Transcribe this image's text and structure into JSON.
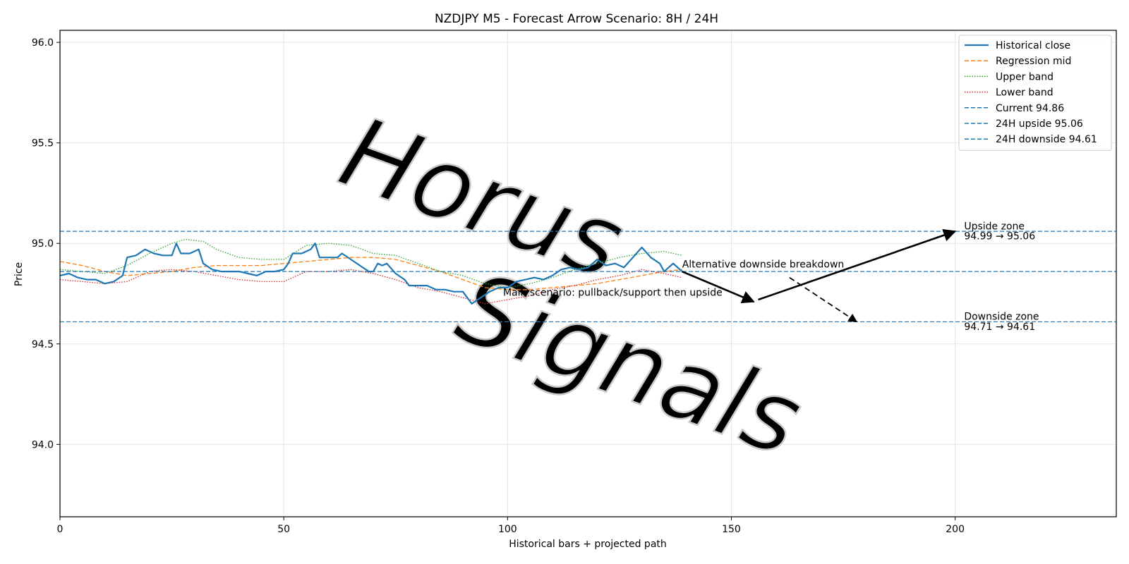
{
  "chart_data": {
    "type": "line",
    "title": "NZDJPY M5 - Forecast Arrow Scenario: 8H / 24H",
    "xlabel": "Historical bars + projected path",
    "ylabel": "Price",
    "xlim": [
      0,
      236
    ],
    "ylim": [
      93.64,
      96.06
    ],
    "xticks": [
      0,
      50,
      100,
      150,
      200
    ],
    "yticks": [
      94.0,
      94.5,
      95.0,
      95.5,
      96.0
    ],
    "grid": true,
    "legend_position": "top-right",
    "series": [
      {
        "name": "Historical close",
        "style": "solid",
        "color": "#1f77b4",
        "x": [
          0,
          2,
          4,
          6,
          8,
          10,
          12,
          14,
          15,
          17,
          19,
          21,
          23,
          25,
          26,
          27,
          29,
          31,
          32,
          34,
          36,
          38,
          40,
          42,
          44,
          46,
          48,
          50,
          51,
          52,
          54,
          56,
          57,
          58,
          60,
          62,
          63,
          65,
          67,
          69,
          70,
          71,
          72,
          73,
          75,
          77,
          78,
          80,
          82,
          84,
          86,
          88,
          90,
          91,
          92,
          94,
          96,
          98,
          100,
          102,
          104,
          106,
          108,
          110,
          112,
          114,
          116,
          118,
          120,
          122,
          124,
          126,
          128,
          130,
          132,
          134,
          135,
          137,
          139
        ],
        "y": [
          94.84,
          94.85,
          94.83,
          94.82,
          94.82,
          94.8,
          94.81,
          94.84,
          94.93,
          94.94,
          94.97,
          94.95,
          94.94,
          94.94,
          95.0,
          94.95,
          94.95,
          94.97,
          94.9,
          94.87,
          94.86,
          94.86,
          94.86,
          94.85,
          94.84,
          94.86,
          94.86,
          94.87,
          94.9,
          94.95,
          94.95,
          94.97,
          95.0,
          94.93,
          94.93,
          94.93,
          94.95,
          94.92,
          94.89,
          94.86,
          94.86,
          94.9,
          94.89,
          94.9,
          94.85,
          94.82,
          94.79,
          94.79,
          94.79,
          94.77,
          94.77,
          94.76,
          94.76,
          94.73,
          94.7,
          94.73,
          94.76,
          94.78,
          94.78,
          94.81,
          94.82,
          94.83,
          94.82,
          94.84,
          94.87,
          94.88,
          94.87,
          94.88,
          94.92,
          94.89,
          94.9,
          94.88,
          94.93,
          94.98,
          94.93,
          94.9,
          94.86,
          94.9,
          94.86
        ]
      },
      {
        "name": "Regression mid",
        "style": "dashed",
        "color": "#ff7f0e",
        "x": [
          0,
          5,
          10,
          15,
          20,
          25,
          30,
          35,
          40,
          45,
          50,
          55,
          60,
          65,
          70,
          75,
          80,
          85,
          90,
          95,
          100,
          105,
          110,
          115,
          120,
          125,
          130,
          135,
          139
        ],
        "y": [
          94.91,
          94.89,
          94.86,
          94.84,
          94.85,
          94.86,
          94.88,
          94.89,
          94.89,
          94.89,
          94.9,
          94.91,
          94.92,
          94.93,
          94.93,
          94.92,
          94.89,
          94.86,
          94.82,
          94.78,
          94.77,
          94.77,
          94.78,
          94.79,
          94.8,
          94.82,
          94.84,
          94.86,
          94.87
        ]
      },
      {
        "name": "Upper band",
        "style": "dotted",
        "color": "#2ca02c",
        "x": [
          0,
          5,
          10,
          15,
          20,
          25,
          28,
          32,
          35,
          40,
          45,
          50,
          55,
          60,
          65,
          70,
          75,
          80,
          85,
          90,
          95,
          100,
          105,
          110,
          115,
          120,
          125,
          130,
          135,
          139
        ],
        "y": [
          94.87,
          94.86,
          94.85,
          94.89,
          94.95,
          95.0,
          95.02,
          95.01,
          94.97,
          94.93,
          94.92,
          94.92,
          94.99,
          95.0,
          94.99,
          94.95,
          94.94,
          94.9,
          94.86,
          94.84,
          94.8,
          94.78,
          94.8,
          94.83,
          94.87,
          94.9,
          94.93,
          94.95,
          94.96,
          94.94
        ]
      },
      {
        "name": "Lower band",
        "style": "dotted",
        "color": "#d62728",
        "x": [
          0,
          5,
          10,
          15,
          20,
          25,
          30,
          35,
          40,
          45,
          50,
          55,
          60,
          65,
          70,
          75,
          80,
          85,
          90,
          95,
          100,
          105,
          110,
          115,
          120,
          125,
          130,
          135,
          139
        ],
        "y": [
          94.82,
          94.81,
          94.8,
          94.81,
          94.86,
          94.87,
          94.86,
          94.84,
          94.82,
          94.81,
          94.81,
          94.86,
          94.86,
          94.87,
          94.85,
          94.82,
          94.78,
          94.76,
          94.73,
          94.7,
          94.72,
          94.74,
          94.77,
          94.79,
          94.82,
          94.84,
          94.87,
          94.85,
          94.83
        ]
      },
      {
        "name": "Current 94.86",
        "style": "dashed",
        "color": "#1f77b4",
        "hline": 94.86
      },
      {
        "name": "24H upside 95.06",
        "style": "dashed",
        "color": "#1f77b4",
        "hline": 95.06
      },
      {
        "name": "24H downside 94.61",
        "style": "dashed",
        "color": "#1f77b4",
        "hline": 94.61
      }
    ],
    "arrows": [
      {
        "name": "main-leg-1",
        "from": [
          139,
          94.86
        ],
        "to": [
          155,
          94.71
        ],
        "style": "solid"
      },
      {
        "name": "main-leg-2",
        "from": [
          156,
          94.72
        ],
        "to": [
          200,
          95.06
        ],
        "style": "solid"
      },
      {
        "name": "alt-down",
        "from": [
          163,
          94.83
        ],
        "to": [
          178,
          94.61
        ],
        "style": "dashed"
      }
    ],
    "annotations": [
      {
        "text": "Alternative downside breakdown",
        "x": 139,
        "y": 94.88,
        "anchor": "start"
      },
      {
        "text": "Main scenario: pullback/support then upside",
        "x": 99,
        "y": 94.74,
        "anchor": "start"
      },
      {
        "text": "Upside zone",
        "x": 202,
        "y": 95.07,
        "anchor": "start"
      },
      {
        "text": "94.99 → 95.06",
        "x": 202,
        "y": 95.02,
        "anchor": "start"
      },
      {
        "text": "Downside zone",
        "x": 202,
        "y": 94.62,
        "anchor": "start"
      },
      {
        "text": "94.71 → 94.61",
        "x": 202,
        "y": 94.57,
        "anchor": "start"
      }
    ],
    "watermark": {
      "lines": [
        "Horus",
        "Signals"
      ]
    }
  }
}
